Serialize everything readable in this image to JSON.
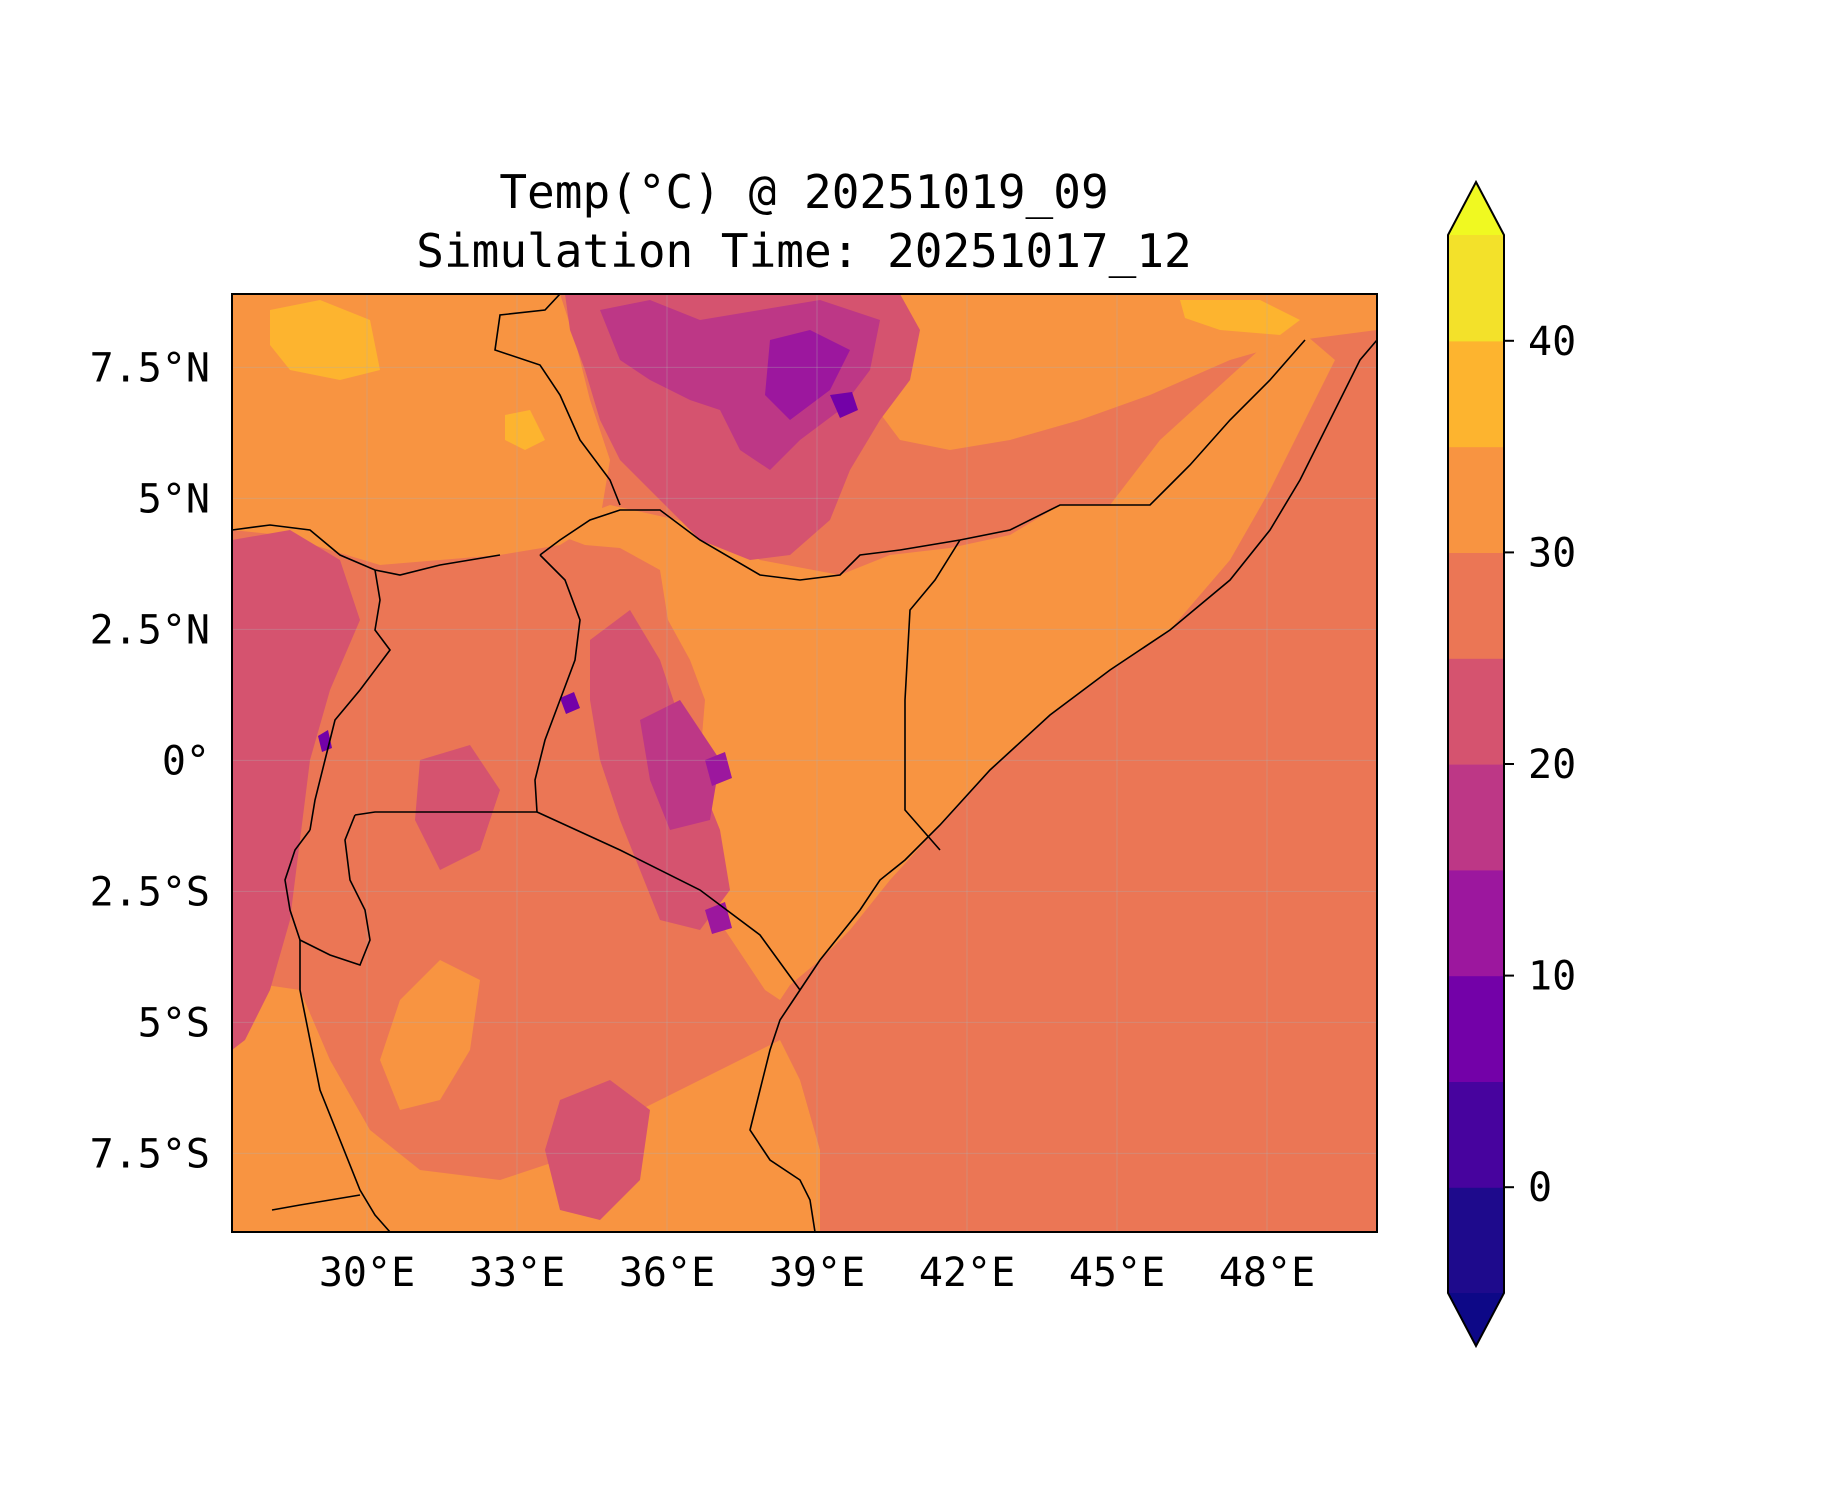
{
  "map": {
    "title_line1": "Temp(°C) @ 20251019_09",
    "title_line2": "Simulation Time: 20251017_12",
    "variable": "Temperature",
    "units": "°C",
    "extent": {
      "lon": [
        27.3,
        50.2
      ],
      "lat": [
        -9.0,
        8.9
      ]
    },
    "lon_ticks": [
      {
        "value": 30,
        "label": "30°E"
      },
      {
        "value": 33,
        "label": "33°E"
      },
      {
        "value": 36,
        "label": "36°E"
      },
      {
        "value": 39,
        "label": "39°E"
      },
      {
        "value": 42,
        "label": "42°E"
      },
      {
        "value": 45,
        "label": "45°E"
      },
      {
        "value": 48,
        "label": "48°E"
      }
    ],
    "lat_ticks": [
      {
        "value": 7.5,
        "label": "7.5°N"
      },
      {
        "value": 5,
        "label": "5°N"
      },
      {
        "value": 2.5,
        "label": "2.5°N"
      },
      {
        "value": 0,
        "label": "0°"
      },
      {
        "value": -2.5,
        "label": "2.5°S"
      },
      {
        "value": -5,
        "label": "5°S"
      },
      {
        "value": -7.5,
        "label": "7.5°S"
      }
    ],
    "gridlines": true,
    "ocean_value_approx": 27.5,
    "land_dominant_value_approx": 32.5
  },
  "colorbar": {
    "colormap": "plasma",
    "levels": [
      -5,
      0,
      5,
      10,
      15,
      20,
      25,
      30,
      35,
      40,
      45
    ],
    "extend": "both",
    "colors": [
      "#1e0a8c",
      "#47039e",
      "#7301a8",
      "#9c179e",
      "#bd3786",
      "#d5536f",
      "#eb7655",
      "#f89441",
      "#fdb42f",
      "#f3e12a"
    ],
    "under_color": "#0d0887",
    "over_color": "#f0f921",
    "ticks": [
      {
        "value": 0,
        "label": "0"
      },
      {
        "value": 10,
        "label": "10"
      },
      {
        "value": 20,
        "label": "20"
      },
      {
        "value": 30,
        "label": "30"
      },
      {
        "value": 40,
        "label": "40"
      }
    ]
  }
}
